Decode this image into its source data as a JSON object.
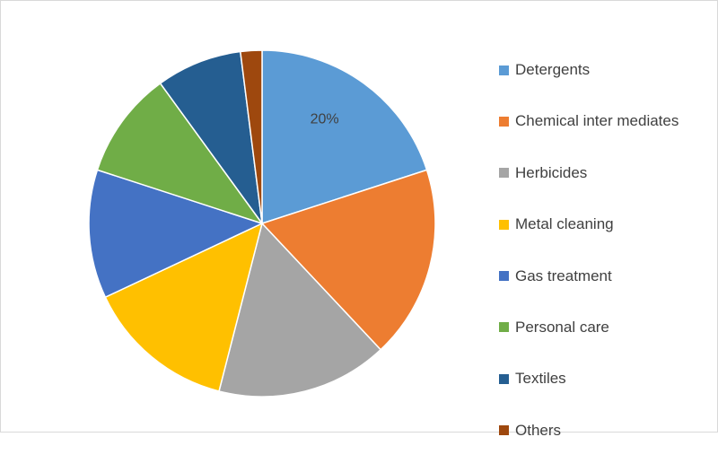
{
  "chart_data": {
    "type": "pie",
    "title": "",
    "start_angle_deg": 0,
    "direction": "clockwise",
    "slices": [
      {
        "label": "Detergents",
        "value": 20,
        "color": "#5b9bd5",
        "data_label": "20%"
      },
      {
        "label": "Chemical inter mediates",
        "value": 18,
        "color": "#ed7d31"
      },
      {
        "label": "Herbicides",
        "value": 16,
        "color": "#a5a5a5"
      },
      {
        "label": "Metal cleaning",
        "value": 14,
        "color": "#ffc000"
      },
      {
        "label": "Gas treatment",
        "value": 12,
        "color": "#4472c4"
      },
      {
        "label": "Personal care",
        "value": 10,
        "color": "#70ad47"
      },
      {
        "label": "Textiles",
        "value": 8,
        "color": "#255e91"
      },
      {
        "label": "Others",
        "value": 2,
        "color": "#9e480e"
      }
    ],
    "legend_position": "right"
  }
}
